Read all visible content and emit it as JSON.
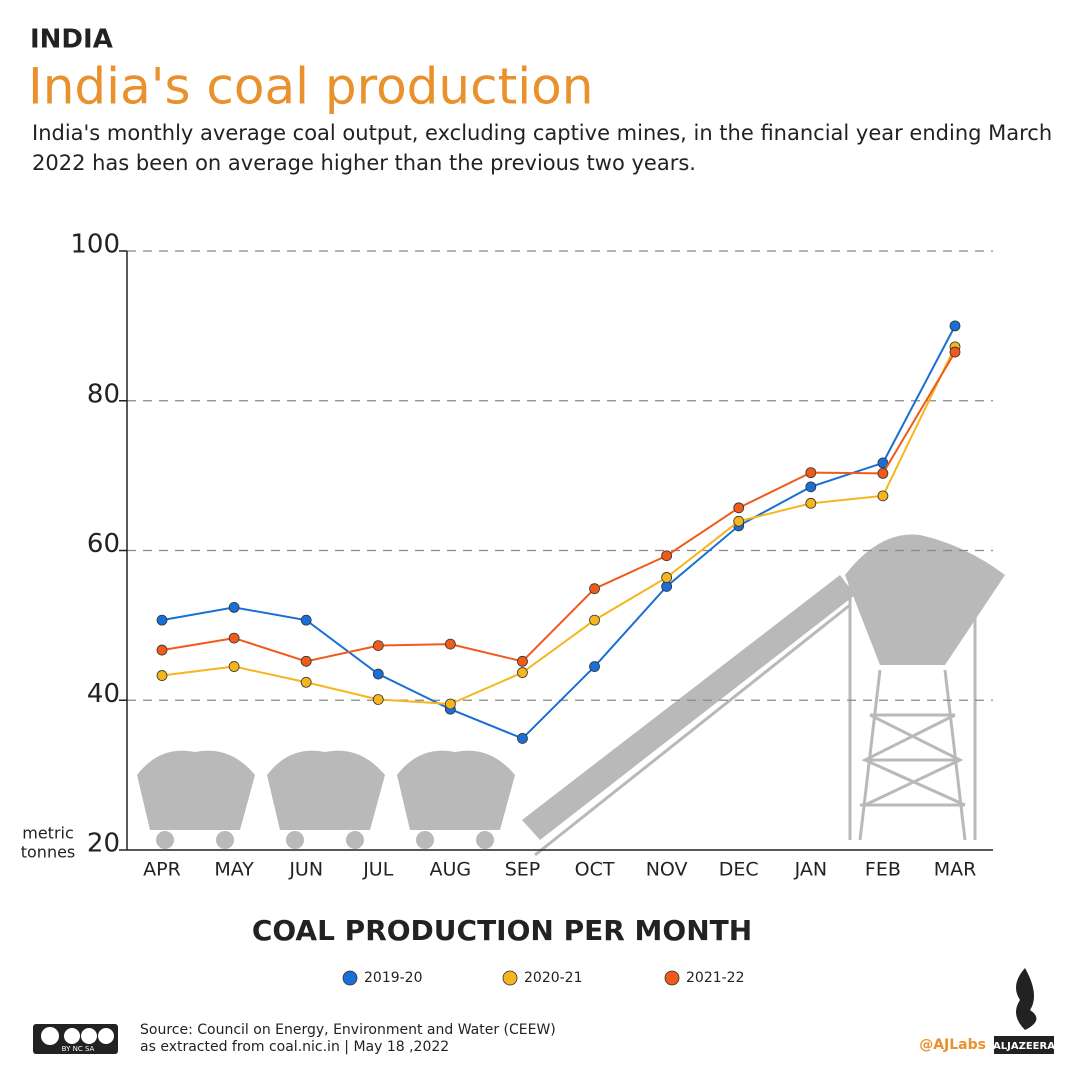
{
  "kicker": "INDIA",
  "chart_data": {
    "type": "line",
    "title": "India's coal production",
    "subtitle": [
      "India's monthly average coal output, excluding captive mines, in the financial year ending March",
      "2022 has been on average higher than the previous two years."
    ],
    "x_label": "COAL PRODUCTION PER MONTH",
    "y_unit": [
      "metric",
      "tonnes"
    ],
    "categories": [
      "APR",
      "MAY",
      "JUN",
      "JUL",
      "AUG",
      "SEP",
      "OCT",
      "NOV",
      "DEC",
      "JAN",
      "FEB",
      "MAR"
    ],
    "series": [
      {
        "name": "2019-20",
        "color": "#1a6fd6",
        "values": [
          50.7,
          52.4,
          50.7,
          43.5,
          38.8,
          34.9,
          44.5,
          55.2,
          63.3,
          68.5,
          71.7,
          90.0
        ]
      },
      {
        "name": "2020-21",
        "color": "#f6b51c",
        "values": [
          43.3,
          44.5,
          42.4,
          40.1,
          39.5,
          43.7,
          50.7,
          56.4,
          63.9,
          66.3,
          67.3,
          87.2
        ]
      },
      {
        "name": "2021-22",
        "color": "#f05a1a",
        "values": [
          46.7,
          48.3,
          45.2,
          47.3,
          47.5,
          45.2,
          54.9,
          59.3,
          65.7,
          70.4,
          70.3,
          86.5
        ]
      }
    ],
    "ylim": [
      20,
      100
    ],
    "yticks": [
      20,
      40,
      60,
      80,
      100
    ],
    "grid": true
  },
  "source": [
    "Source: Council on Energy, Environment and Water (CEEW)",
    "as extracted from coal.nic.in | May 18 ,2022"
  ],
  "credit": "@AJLabs",
  "brand": "ALJAZEERA",
  "license": "BY  NC  SA"
}
